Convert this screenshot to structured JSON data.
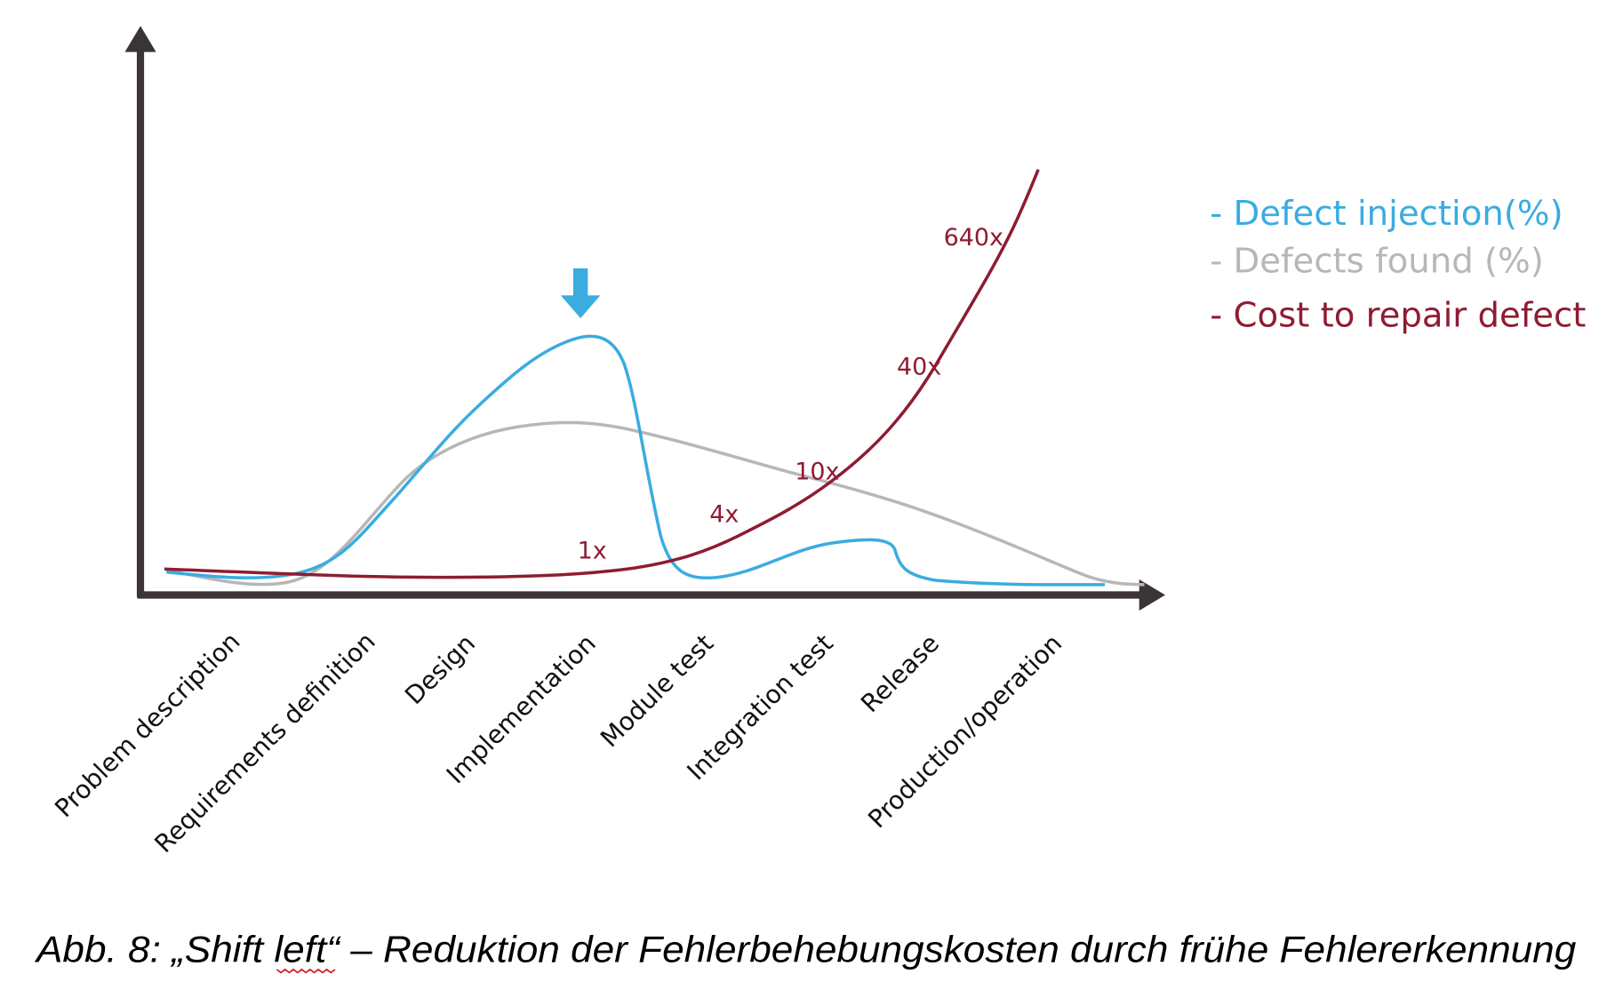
{
  "categories": [
    "Problem description",
    "Requirements definition",
    "Design",
    "Implementation",
    "Module test",
    "Integration test",
    "Release",
    "Production/operation"
  ],
  "legend": [
    "- Defect injection(%)",
    "- Defects found (%)",
    "- Cost to repair defect"
  ],
  "cost_labels": [
    "1x",
    "4x",
    "10x",
    "40x",
    "640x"
  ],
  "caption": "Abb. 8: „Shift left“ – Reduktion der Fehlerbehebungskosten durch frühe Fehlererkennung"
}
